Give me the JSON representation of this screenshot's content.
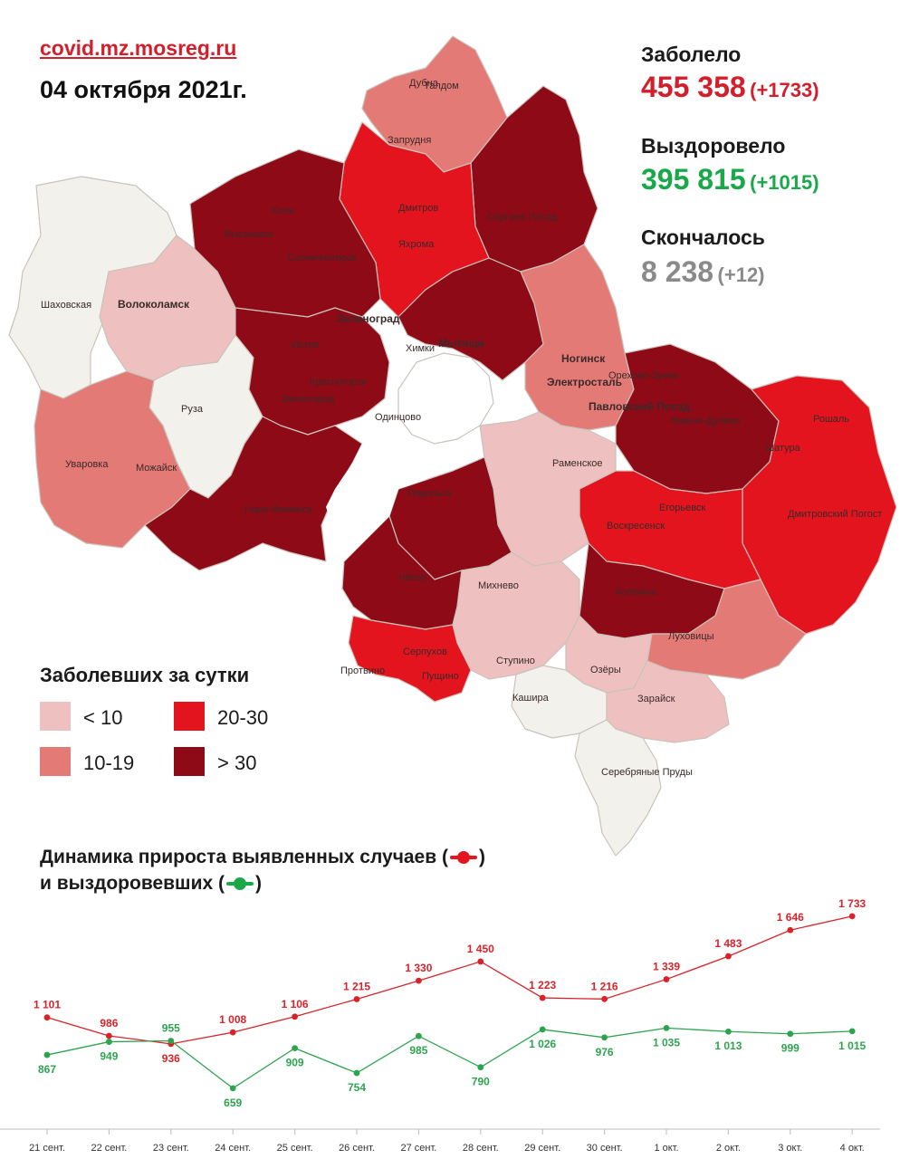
{
  "header": {
    "site": "covid.mz.mosreg.ru",
    "date": "04 октября 2021г."
  },
  "stats": {
    "cases": {
      "label": "Заболело",
      "value": "455 358",
      "delta": "(+1733)",
      "color": "#d21f2b"
    },
    "recovered": {
      "label": "Выздоровело",
      "value": "395 815",
      "delta": "(+1015)",
      "color": "#1aa84a"
    },
    "deaths": {
      "label": "Скончалось",
      "value": "8 238",
      "delta": "(+12)",
      "color": "#8a8a8a"
    }
  },
  "map": {
    "legend_title": "Заболевших за сутки",
    "legend": [
      {
        "label": "< 10",
        "color": "#efc0c0"
      },
      {
        "label": "10-19",
        "color": "#e47a76"
      },
      {
        "label": "20-30",
        "color": "#e3141e"
      },
      {
        "label": "> 30",
        "color": "#8e0a16"
      }
    ],
    "light_color": "#f2f1ec",
    "cities": [
      "Дубна",
      "Талдом",
      "Запрудня",
      "Клин",
      "Высоковск",
      "Дмитров",
      "Яхрома",
      "Сергиев Посад",
      "Солнечногорск",
      "Шаховская",
      "Волоколамск",
      "Зеленоград",
      "Истра",
      "Химки",
      "Мытищи",
      "Красногорск",
      "Звенигород",
      "Одинцово",
      "Руза",
      "Ногинск",
      "Электросталь",
      "Павловский Посад",
      "Орехово-Зуево",
      "Ликино-Дулёво",
      "Рошаль",
      "Шатура",
      "Уваровка",
      "Можайск",
      "Наро-Фоминск",
      "Раменское",
      "Подольск",
      "Воскресенск",
      "Егорьевск",
      "Дмитровский Погост",
      "Чехов",
      "Михнево",
      "Коломна",
      "Серпухов",
      "Пущино",
      "Ступино",
      "Озёры",
      "Луховицы",
      "Протвино",
      "Кашира",
      "Зарайск",
      "Серебряные Пруды"
    ]
  },
  "dynamics": {
    "title_line1": "Динамика прироста выявленных случаев (",
    "title_line1_end": ")",
    "title_line2": "и выздоровевших (",
    "title_line2_end": ")"
  },
  "chart_data": {
    "type": "line",
    "categories": [
      "21 сент.",
      "22 сент.",
      "23 сент.",
      "24 сент.",
      "25 сент.",
      "26 сент.",
      "27 сент.",
      "28 сент.",
      "29 сент.",
      "30 сент.",
      "1 окт.",
      "2 окт.",
      "3 окт.",
      "4 окт."
    ],
    "series": [
      {
        "values": [
          1101,
          986,
          936,
          1008,
          1106,
          1215,
          1330,
          1450,
          1223,
          1216,
          1339,
          1483,
          1646,
          1733
        ],
        "labels": [
          "1 101",
          "986",
          "936",
          "1 008",
          "1 106",
          "1 215",
          "1 330",
          "1 450",
          "1 223",
          "1 216",
          "1 339",
          "1 483",
          "1 646",
          "1 733"
        ],
        "color": "#d8232a"
      },
      {
        "values": [
          867,
          949,
          955,
          659,
          909,
          754,
          985,
          790,
          1026,
          976,
          1035,
          1013,
          999,
          1015
        ],
        "labels": [
          "867",
          "949",
          "955",
          "659",
          "909",
          "754",
          "985",
          "790",
          "1 026",
          "976",
          "1 035",
          "1 013",
          "999",
          "1 015"
        ],
        "color": "#2ea44f"
      }
    ]
  }
}
